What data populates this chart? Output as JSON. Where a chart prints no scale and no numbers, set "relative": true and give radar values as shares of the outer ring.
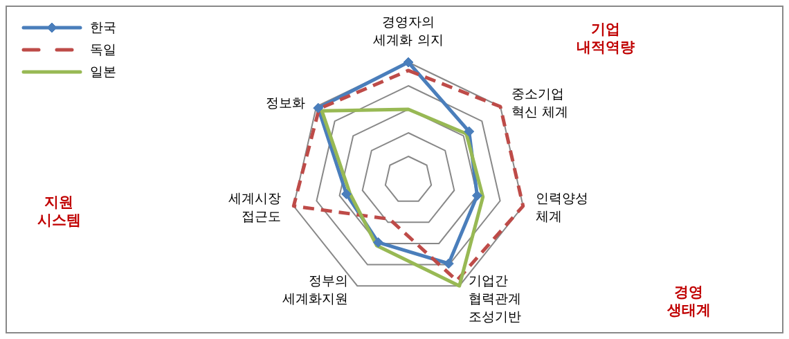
{
  "chart_data": {
    "type": "radar",
    "relative": true,
    "grid": true,
    "legend": "top left",
    "categories": [
      "경영자의\n세계화 의지",
      "중소기업\n혁신 체계",
      "인력양성\n체계",
      "기업간\n협력관계\n조성기반",
      "정부의\n세계화지원",
      "세계시장\n접근도",
      "정보화"
    ],
    "series": [
      {
        "name": "한국",
        "color": "#4a7ebb",
        "marker": "diamond",
        "line_style": "solid",
        "values": [
          1.0,
          0.66,
          0.6,
          0.79,
          0.59,
          0.54,
          0.98
        ]
      },
      {
        "name": "독일",
        "color": "#be4b48",
        "marker": "none",
        "line_style": "dashed",
        "values": [
          0.93,
          1.0,
          1.0,
          0.95,
          0.37,
          1.0,
          0.97
        ]
      },
      {
        "name": "일본",
        "color": "#98b954",
        "marker": "none",
        "line_style": "solid",
        "values": [
          0.6,
          0.63,
          0.65,
          1.0,
          0.62,
          0.51,
          0.94
        ]
      }
    ],
    "annotations": [
      "기업\n내적역량",
      "경영\n생태계",
      "지원\n시스템"
    ]
  }
}
